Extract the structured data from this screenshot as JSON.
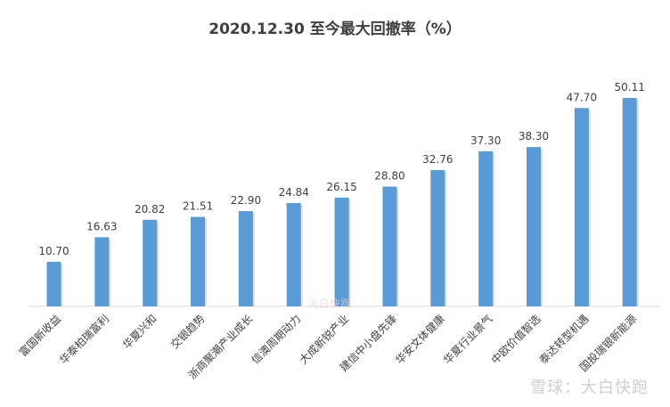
{
  "chart_data": {
    "type": "bar",
    "title": "2020.12.30 至今最大回撤率（%）",
    "categories": [
      "富国新收益",
      "华泰柏瑞富利",
      "华夏兴和",
      "交银趋势",
      "浙商聚潮产业成长",
      "信澳周期动力",
      "大成新锐产业",
      "建信中小盘先锋",
      "华安文体健康",
      "华夏行业景气",
      "中欧价值智选",
      "泰达转型机遇",
      "国投瑞银新能源"
    ],
    "values": [
      10.7,
      16.63,
      20.82,
      21.51,
      22.9,
      24.84,
      26.15,
      28.8,
      32.76,
      37.3,
      38.3,
      47.7,
      50.11
    ],
    "value_labels": [
      "10.70",
      "16.63",
      "20.82",
      "21.51",
      "22.90",
      "24.84",
      "26.15",
      "28.80",
      "32.76",
      "37.30",
      "38.30",
      "47.70",
      "50.11"
    ],
    "ylim": [
      0,
      50.11
    ],
    "xlabel": "",
    "ylabel": "",
    "grid": false,
    "legend": "none",
    "bar_color": "#5b9bd5"
  },
  "watermark": {
    "text": "雪球：大白快跑",
    "center_mark": "大白快跑"
  }
}
